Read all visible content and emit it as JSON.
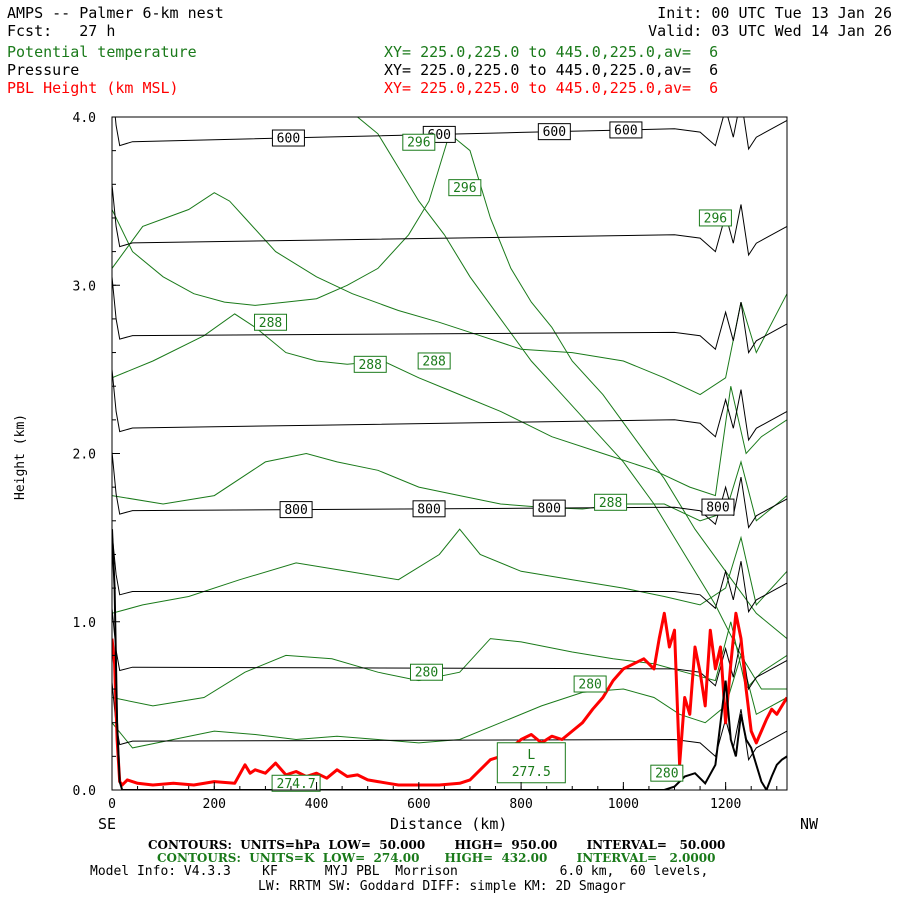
{
  "header": {
    "title": "AMPS -- Palmer 6-km nest",
    "fcst": "Fcst:   27 h",
    "init": "Init: 00 UTC Tue 13 Jan 26",
    "valid": "Valid: 03 UTC Wed 14 Jan 26",
    "fields": [
      {
        "name": "Potential temperature",
        "xy": "XY= 225.0,225.0 to 445.0,225.0,av=  6",
        "color": "#1a7a1a"
      },
      {
        "name": "Pressure",
        "xy": "XY= 225.0,225.0 to 445.0,225.0,av=  6",
        "color": "#000000"
      },
      {
        "name": "PBL Height (km MSL)",
        "xy": "XY= 225.0,225.0 to 445.0,225.0,av=  6",
        "color": "#ff0000"
      }
    ]
  },
  "footer": {
    "line1": "CONTOURS:  UNITS=hPa  LOW=  50.000       HIGH=  950.00       INTERVAL=   50.000",
    "line2": "CONTOURS:  UNITS=K  LOW=  274.00      HIGH=  432.00       INTERVAL=   2.0000",
    "line3": "Model Info: V4.3.3    KF      MYJ PBL  Morrison             6.0 km,  60 levels,",
    "line4": "LW: RRTM SW: Goddard DIFF: simple KM: 2D Smagor"
  },
  "chart_data": {
    "type": "line",
    "xlabel": "Distance (km)",
    "ylabel": "Height (km)",
    "xlim": [
      0,
      1320
    ],
    "ylim": [
      0,
      4.0
    ],
    "x_ticks": [
      0,
      200,
      400,
      600,
      800,
      1000,
      1200
    ],
    "y_ticks": [
      "0.0",
      "1.0",
      "2.0",
      "3.0",
      "4.0"
    ],
    "left_end": "SE",
    "right_end": "NW",
    "colors": {
      "pressure": "#000000",
      "theta": "#1a7a1a",
      "pbl": "#ff0000"
    },
    "pressure_levels": [
      {
        "level": 600,
        "left": 3.85,
        "right": 3.93,
        "labels": [
          {
            "x": 345,
            "text": "600"
          },
          {
            "x": 640,
            "text": "600"
          },
          {
            "x": 865,
            "text": "600"
          },
          {
            "x": 1005,
            "text": "600"
          }
        ]
      },
      {
        "level": 650,
        "left": 3.25,
        "right": 3.3,
        "labels": []
      },
      {
        "level": 700,
        "left": 2.7,
        "right": 2.72,
        "labels": []
      },
      {
        "level": 750,
        "left": 2.15,
        "right": 2.2,
        "labels": []
      },
      {
        "level": 800,
        "left": 1.66,
        "right": 1.68,
        "labels": [
          {
            "x": 360,
            "text": "800"
          },
          {
            "x": 620,
            "text": "800"
          },
          {
            "x": 855,
            "text": "800"
          },
          {
            "x": 1185,
            "text": "800"
          }
        ]
      },
      {
        "level": 850,
        "left": 1.18,
        "right": 1.18,
        "labels": []
      },
      {
        "level": 900,
        "left": 0.73,
        "right": 0.72,
        "labels": []
      },
      {
        "level": 950,
        "left": 0.29,
        "right": 0.3,
        "labels": []
      }
    ],
    "theta_labels": [
      {
        "x": 600,
        "y": 3.85,
        "text": "296"
      },
      {
        "x": 690,
        "y": 3.58,
        "text": "296"
      },
      {
        "x": 1180,
        "y": 3.4,
        "text": "296"
      },
      {
        "x": 310,
        "y": 2.78,
        "text": "288"
      },
      {
        "x": 505,
        "y": 2.53,
        "text": "288"
      },
      {
        "x": 630,
        "y": 2.55,
        "text": "288"
      },
      {
        "x": 975,
        "y": 1.71,
        "text": "288"
      },
      {
        "x": 615,
        "y": 0.7,
        "text": "280"
      },
      {
        "x": 935,
        "y": 0.63,
        "text": "280"
      },
      {
        "x": 1085,
        "y": 0.1,
        "text": "280"
      },
      {
        "x": 360,
        "y": 0.04,
        "text": "274.7"
      }
    ],
    "low_marker": {
      "x": 820,
      "y": 0.15,
      "letter": "L",
      "value": "277.5"
    },
    "theta_lines": [
      {
        "x": [
          0,
          60,
          150,
          200,
          230,
          260,
          320,
          400,
          470,
          560,
          640,
          720,
          800,
          900,
          1000,
          1080,
          1150,
          1200,
          1230,
          1260,
          1320
        ],
        "y": [
          3.1,
          3.35,
          3.45,
          3.55,
          3.5,
          3.4,
          3.2,
          3.05,
          2.95,
          2.85,
          2.78,
          2.7,
          2.62,
          2.6,
          2.55,
          2.45,
          2.35,
          2.45,
          2.9,
          2.6,
          2.95
        ]
      },
      {
        "x": [
          0,
          80,
          180,
          240,
          280,
          340,
          400,
          460,
          530,
          600,
          680,
          760,
          860,
          960,
          1060,
          1130,
          1180,
          1210,
          1240,
          1270,
          1320
        ],
        "y": [
          2.45,
          2.55,
          2.7,
          2.83,
          2.75,
          2.6,
          2.55,
          2.53,
          2.55,
          2.45,
          2.35,
          2.25,
          2.1,
          2.0,
          1.9,
          1.8,
          1.75,
          2.4,
          2.0,
          2.1,
          2.2
        ]
      },
      {
        "x": [
          0,
          100,
          200,
          300,
          380,
          440,
          520,
          600,
          680,
          760,
          840,
          920,
          1000,
          1080,
          1150,
          1200,
          1230,
          1260,
          1320
        ],
        "y": [
          1.75,
          1.7,
          1.75,
          1.95,
          2.0,
          1.95,
          1.9,
          1.8,
          1.75,
          1.7,
          1.68,
          1.67,
          1.7,
          1.7,
          1.6,
          1.65,
          1.95,
          1.6,
          1.75
        ]
      },
      {
        "x": [
          0,
          60,
          150,
          250,
          360,
          460,
          560,
          640,
          680,
          720,
          800,
          900,
          1000,
          1080,
          1150,
          1200,
          1230,
          1260,
          1320
        ],
        "y": [
          1.05,
          1.1,
          1.15,
          1.25,
          1.35,
          1.3,
          1.25,
          1.4,
          1.55,
          1.4,
          1.3,
          1.25,
          1.2,
          1.15,
          1.1,
          1.2,
          1.5,
          1.1,
          1.3
        ]
      },
      {
        "x": [
          0,
          80,
          180,
          260,
          340,
          430,
          520,
          600,
          680,
          740,
          800,
          900,
          980,
          1060,
          1120,
          1180,
          1210,
          1240,
          1270,
          1320
        ],
        "y": [
          0.55,
          0.5,
          0.55,
          0.7,
          0.8,
          0.78,
          0.7,
          0.65,
          0.7,
          0.9,
          0.88,
          0.82,
          0.78,
          0.75,
          0.7,
          0.65,
          1.0,
          0.6,
          0.7,
          0.8
        ]
      },
      {
        "x": [
          0,
          40,
          120,
          200,
          280,
          360,
          440,
          520,
          600,
          680,
          760,
          840,
          920,
          1000,
          1060,
          1110,
          1160,
          1200,
          1230,
          1260,
          1320
        ],
        "y": [
          0.4,
          0.25,
          0.3,
          0.35,
          0.33,
          0.3,
          0.32,
          0.3,
          0.28,
          0.3,
          0.4,
          0.5,
          0.58,
          0.6,
          0.55,
          0.45,
          0.4,
          0.5,
          0.8,
          0.45,
          0.55
        ]
      },
      {
        "x": [
          0,
          40,
          100,
          160,
          220,
          280,
          340,
          400,
          460,
          520,
          580,
          620,
          660,
          700,
          740,
          780,
          820,
          860,
          900,
          960,
          1020,
          1080,
          1140,
          1200,
          1260,
          1320
        ],
        "y": [
          3.45,
          3.2,
          3.05,
          2.95,
          2.9,
          2.88,
          2.9,
          2.92,
          3.0,
          3.1,
          3.3,
          3.5,
          3.9,
          3.8,
          3.4,
          3.1,
          2.9,
          2.75,
          2.55,
          2.35,
          2.1,
          1.85,
          1.55,
          1.3,
          1.05,
          0.9
        ]
      },
      {
        "x": [
          480,
          520,
          560,
          600,
          650,
          700,
          760,
          820,
          880,
          940,
          1000,
          1060,
          1120,
          1180,
          1230,
          1270,
          1320
        ],
        "y": [
          4.0,
          3.9,
          3.7,
          3.5,
          3.3,
          3.05,
          2.8,
          2.55,
          2.35,
          2.15,
          1.95,
          1.7,
          1.4,
          1.1,
          0.8,
          0.6,
          0.6
        ]
      }
    ],
    "pbl": {
      "x": [
        0,
        5,
        10,
        15,
        20,
        30,
        50,
        80,
        120,
        160,
        200,
        240,
        260,
        270,
        280,
        300,
        320,
        340,
        360,
        380,
        400,
        420,
        440,
        460,
        480,
        500,
        520,
        540,
        560,
        600,
        640,
        680,
        700,
        720,
        740,
        760,
        780,
        800,
        820,
        840,
        860,
        880,
        900,
        920,
        940,
        960,
        980,
        1000,
        1020,
        1040,
        1060,
        1070,
        1080,
        1090,
        1100,
        1110,
        1120,
        1130,
        1140,
        1150,
        1160,
        1170,
        1180,
        1190,
        1200,
        1210,
        1220,
        1230,
        1240,
        1250,
        1260,
        1270,
        1280,
        1290,
        1300,
        1310,
        1320
      ],
      "y": [
        0.9,
        0.75,
        0.3,
        0.05,
        0.03,
        0.06,
        0.04,
        0.03,
        0.04,
        0.03,
        0.05,
        0.04,
        0.15,
        0.1,
        0.12,
        0.1,
        0.16,
        0.09,
        0.11,
        0.08,
        0.1,
        0.07,
        0.12,
        0.08,
        0.09,
        0.06,
        0.05,
        0.04,
        0.03,
        0.03,
        0.03,
        0.04,
        0.06,
        0.12,
        0.18,
        0.2,
        0.25,
        0.3,
        0.33,
        0.28,
        0.32,
        0.3,
        0.35,
        0.4,
        0.48,
        0.55,
        0.65,
        0.72,
        0.75,
        0.78,
        0.72,
        0.9,
        1.05,
        0.85,
        0.95,
        0.15,
        0.55,
        0.45,
        0.85,
        0.7,
        0.5,
        0.95,
        0.72,
        0.85,
        0.4,
        0.75,
        1.05,
        0.9,
        0.6,
        0.35,
        0.28,
        0.35,
        0.42,
        0.48,
        0.45,
        0.5,
        0.55
      ]
    },
    "terrain": {
      "x": [
        0,
        5,
        10,
        15,
        20,
        30,
        60,
        600,
        1000,
        1080,
        1100,
        1120,
        1140,
        1160,
        1180,
        1200,
        1210,
        1220,
        1230,
        1240,
        1250,
        1260,
        1270,
        1280,
        1290,
        1300,
        1310,
        1320
      ],
      "y": [
        1.55,
        1.2,
        0.4,
        0.05,
        0.0,
        0.0,
        0.0,
        0.0,
        0.0,
        0.0,
        0.02,
        0.08,
        0.1,
        0.04,
        0.15,
        0.65,
        0.3,
        0.2,
        0.45,
        0.3,
        0.25,
        0.15,
        0.05,
        0.0,
        0.08,
        0.15,
        0.18,
        0.2
      ]
    }
  }
}
